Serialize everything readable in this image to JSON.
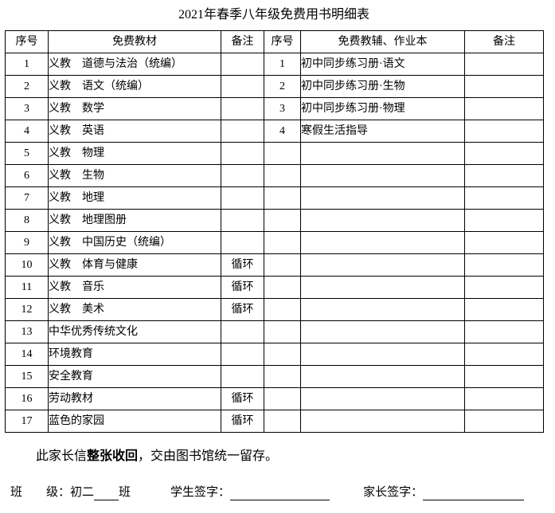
{
  "title": "2021年春季八年级免费用书明细表",
  "table": {
    "headers": [
      "序号",
      "免费教材",
      "备注",
      "序号",
      "免费教辅、作业本",
      "备注"
    ],
    "rows": [
      {
        "cells": [
          "1",
          "义教　道德与法治（统编）",
          "",
          "1",
          "初中同步练习册·语文",
          ""
        ]
      },
      {
        "cells": [
          "2",
          "义教　语文（统编）",
          "",
          "2",
          "初中同步练习册·生物",
          ""
        ]
      },
      {
        "cells": [
          "3",
          "义教　数学",
          "",
          "3",
          "初中同步练习册·物理",
          ""
        ]
      },
      {
        "cells": [
          "4",
          "义教　英语",
          "",
          "4",
          "寒假生活指导",
          ""
        ]
      },
      {
        "cells": [
          "5",
          "义教　物理",
          "",
          "",
          "",
          ""
        ]
      },
      {
        "cells": [
          "6",
          "义教　生物",
          "",
          "",
          "",
          ""
        ]
      },
      {
        "cells": [
          "7",
          "义教　地理",
          "",
          "",
          "",
          ""
        ]
      },
      {
        "cells": [
          "8",
          "义教　地理图册",
          "",
          "",
          "",
          ""
        ]
      },
      {
        "cells": [
          "9",
          "义教　中国历史（统编）",
          "",
          "",
          "",
          ""
        ]
      },
      {
        "cells": [
          "10",
          "义教　体育与健康",
          "循环",
          "",
          "",
          ""
        ]
      },
      {
        "cells": [
          "11",
          "义教　音乐",
          "循环",
          "",
          "",
          ""
        ]
      },
      {
        "cells": [
          "12",
          "义教　美术",
          "循环",
          "",
          "",
          ""
        ]
      },
      {
        "cells": [
          "13",
          "中华优秀传统文化",
          "",
          "",
          "",
          ""
        ]
      },
      {
        "cells": [
          "14",
          "环境教育",
          "",
          "",
          "",
          ""
        ]
      },
      {
        "cells": [
          "15",
          "安全教育",
          "",
          "",
          "",
          ""
        ]
      },
      {
        "cells": [
          "16",
          "劳动教材",
          "循环",
          "",
          "",
          ""
        ]
      },
      {
        "cells": [
          "17",
          "蓝色的家园",
          "循环",
          "",
          "",
          ""
        ]
      }
    ]
  },
  "footer": {
    "note_prefix": "此家长信",
    "note_bold": "整张收回",
    "note_suffix": "，交由图书馆统一留存。",
    "class_word_1": "班",
    "class_word_2": "级：初二",
    "class_word_3": "班",
    "student_sign_label": "学生签字：",
    "parent_sign_label": "家长签字："
  },
  "colors": {
    "text": "#000000",
    "border": "#000000",
    "background": "#ffffff"
  }
}
